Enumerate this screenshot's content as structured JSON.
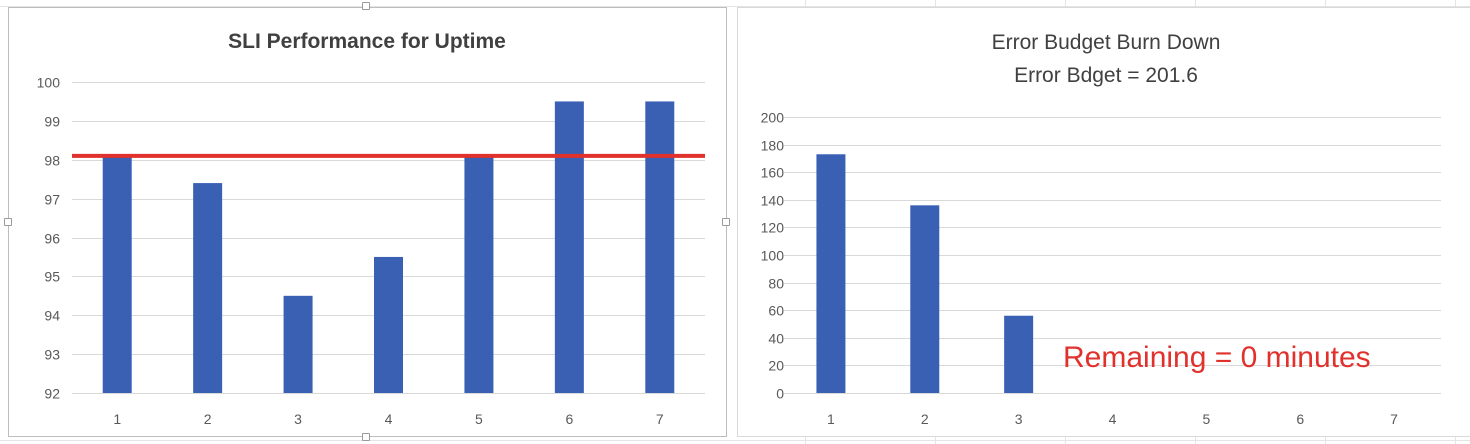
{
  "colors": {
    "bar": "#3a60b4",
    "threshold_line": "#e0312c",
    "gridline": "#d9d9d9",
    "axis_text": "#595959",
    "title_text": "#404040",
    "annotation": "#e0312c"
  },
  "chart_data": [
    {
      "type": "bar",
      "title": "SLI Performance for Uptime",
      "categories": [
        "1",
        "2",
        "3",
        "4",
        "5",
        "6",
        "7"
      ],
      "series": [
        {
          "values": [
            98.1,
            97.4,
            94.5,
            95.5,
            98.1,
            99.5,
            99.5
          ]
        }
      ],
      "threshold": {
        "value": 98.1
      },
      "ylim": [
        92,
        100
      ],
      "yticks": [
        "92",
        "93",
        "94",
        "95",
        "96",
        "97",
        "98",
        "99",
        "100"
      ],
      "grid": true,
      "legend": "none"
    },
    {
      "type": "bar",
      "title": "Error Budget Burn Down",
      "subtitle": "Error Bdget = 201.6",
      "categories": [
        "1",
        "2",
        "3",
        "4",
        "5",
        "6",
        "7"
      ],
      "series": [
        {
          "values": [
            173,
            136,
            56,
            null,
            null,
            null,
            null
          ]
        }
      ],
      "ylim": [
        0,
        200
      ],
      "yticks": [
        "0",
        "20",
        "40",
        "60",
        "80",
        "100",
        "120",
        "140",
        "160",
        "180",
        "200"
      ],
      "annotation": "Remaining = 0 minutes",
      "grid": true,
      "legend": "none"
    }
  ]
}
